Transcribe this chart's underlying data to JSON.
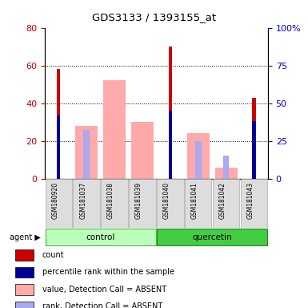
{
  "title": "GDS3133 / 1393155_at",
  "samples": [
    "GSM180920",
    "GSM181037",
    "GSM181038",
    "GSM181039",
    "GSM181040",
    "GSM181041",
    "GSM181042",
    "GSM181043"
  ],
  "groups": [
    "control",
    "control",
    "control",
    "control",
    "quercetin",
    "quercetin",
    "quercetin",
    "quercetin"
  ],
  "group_labels": [
    "control",
    "quercetin"
  ],
  "group_colors": [
    "#aaffaa",
    "#00cc00"
  ],
  "count_values": [
    58,
    0,
    0,
    0,
    70,
    0,
    0,
    43
  ],
  "percentile_values": [
    42,
    0,
    0,
    0,
    45,
    0,
    0,
    38
  ],
  "absent_value_bars": [
    0,
    28,
    52,
    30,
    0,
    24,
    6,
    0
  ],
  "absent_rank_bars": [
    0,
    26,
    0,
    0,
    0,
    20,
    12,
    0
  ],
  "ylim_left": [
    0,
    80
  ],
  "ylim_right": [
    0,
    100
  ],
  "yticks_left": [
    0,
    20,
    40,
    60,
    80
  ],
  "yticks_right": [
    0,
    25,
    50,
    75,
    100
  ],
  "ylabel_left_color": "#cc0000",
  "ylabel_right_color": "#0000cc",
  "bar_width": 0.4,
  "count_color": "#cc0000",
  "percentile_color": "#000099",
  "absent_value_color": "#ffaaaa",
  "absent_rank_color": "#aaaaee",
  "legend_items": [
    {
      "label": "count",
      "color": "#cc0000",
      "marker": "s"
    },
    {
      "label": "percentile rank within the sample",
      "color": "#000099",
      "marker": "s"
    },
    {
      "label": "value, Detection Call = ABSENT",
      "color": "#ffaaaa",
      "marker": "s"
    },
    {
      "label": "rank, Detection Call = ABSENT",
      "color": "#aaaaee",
      "marker": "s"
    }
  ],
  "agent_label": "agent",
  "background_color": "#ffffff",
  "plot_bg_color": "#ffffff",
  "tick_label_rotation": 90
}
